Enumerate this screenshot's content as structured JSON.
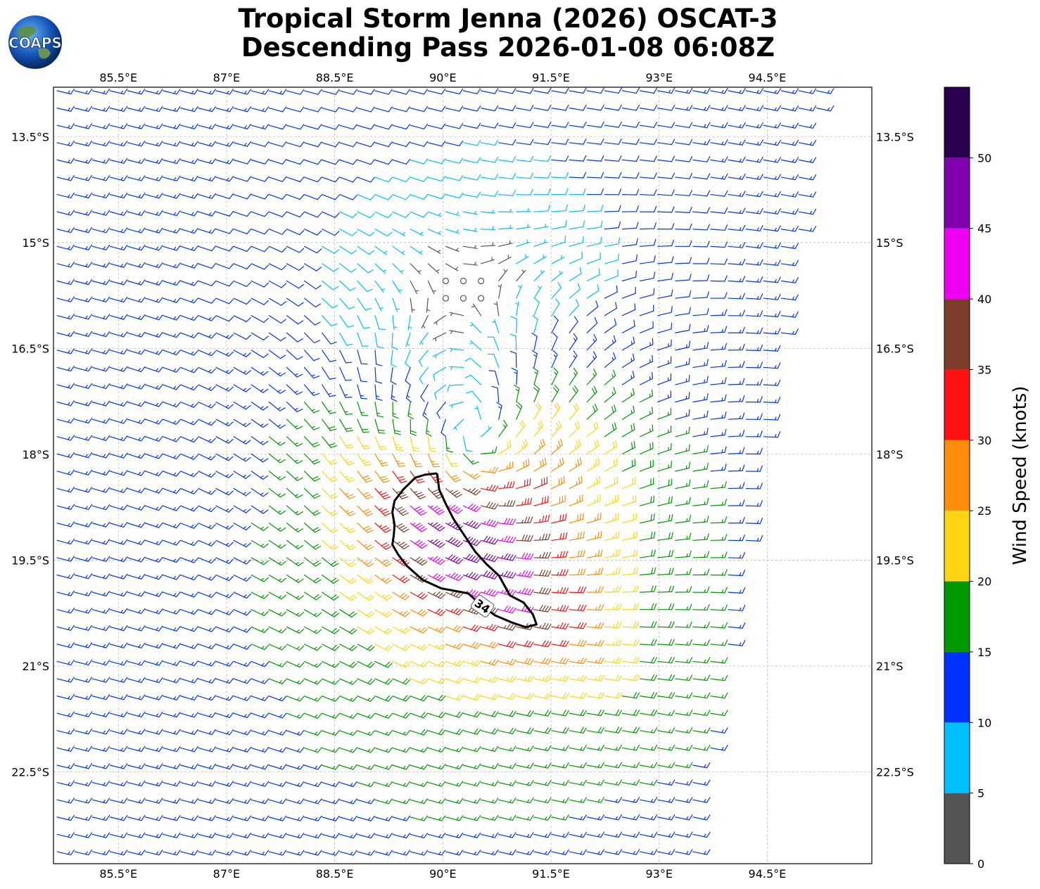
{
  "header": {
    "title_line1": "Tropical Storm Jenna (2026) OSCAT-3",
    "title_line2": "Descending Pass 2026-01-08 06:08Z",
    "logo_text": "COAPS"
  },
  "chart_data": {
    "type": "wind-barb map",
    "x_ticks": [
      "85.5°E",
      "87°E",
      "88.5°E",
      "90°E",
      "91.5°E",
      "93°E",
      "94.5°E"
    ],
    "x_tick_values": [
      85.5,
      87,
      88.5,
      90,
      91.5,
      93,
      94.5
    ],
    "y_ticks": [
      "13.5°S",
      "15°S",
      "16.5°S",
      "18°S",
      "19.5°S",
      "21°S",
      "22.5°S"
    ],
    "y_tick_values": [
      -13.5,
      -15,
      -16.5,
      -18,
      -19.5,
      -21,
      -22.5
    ],
    "xlim": [
      84.6,
      95.95
    ],
    "ylim": [
      -23.8,
      -12.8
    ],
    "grid": true,
    "storm_center": {
      "lon": 90.45,
      "lat": -18.0
    },
    "contour_label": "34",
    "contour_level_knots": 34,
    "contour_34kt": [
      [
        89.92,
        -18.27
      ],
      [
        89.75,
        -18.29
      ],
      [
        89.62,
        -18.33
      ],
      [
        89.45,
        -18.5
      ],
      [
        89.33,
        -18.66
      ],
      [
        89.3,
        -18.82
      ],
      [
        89.33,
        -19.0
      ],
      [
        89.32,
        -19.15
      ],
      [
        89.3,
        -19.28
      ],
      [
        89.38,
        -19.42
      ],
      [
        89.5,
        -19.58
      ],
      [
        89.72,
        -19.78
      ],
      [
        89.98,
        -19.9
      ],
      [
        90.35,
        -19.97
      ],
      [
        90.55,
        -20.15
      ],
      [
        90.72,
        -20.28
      ],
      [
        90.95,
        -20.38
      ],
      [
        91.15,
        -20.45
      ],
      [
        91.3,
        -20.41
      ],
      [
        91.25,
        -20.27
      ],
      [
        91.12,
        -20.1
      ],
      [
        90.93,
        -20.0
      ],
      [
        90.85,
        -19.85
      ],
      [
        90.78,
        -19.72
      ],
      [
        90.6,
        -19.55
      ],
      [
        90.45,
        -19.38
      ],
      [
        90.28,
        -19.12
      ],
      [
        90.15,
        -18.92
      ],
      [
        90.05,
        -18.72
      ],
      [
        89.95,
        -18.5
      ],
      [
        89.92,
        -18.27
      ]
    ],
    "colorbar": {
      "label": "Wind Speed (knots)",
      "ticks": [
        "0",
        "5",
        "10",
        "15",
        "20",
        "25",
        "30",
        "35",
        "40",
        "45",
        "50"
      ],
      "bounds": [
        0,
        5,
        10,
        15,
        20,
        25,
        30,
        35,
        40,
        45,
        50,
        55
      ],
      "colors": [
        "#555555",
        "#00bfff",
        "#0033ff",
        "#009900",
        "#ffd511",
        "#ff8c0a",
        "#ff1111",
        "#7e3c2a",
        "#f000f0",
        "#8000b0",
        "#2a004f"
      ]
    }
  }
}
